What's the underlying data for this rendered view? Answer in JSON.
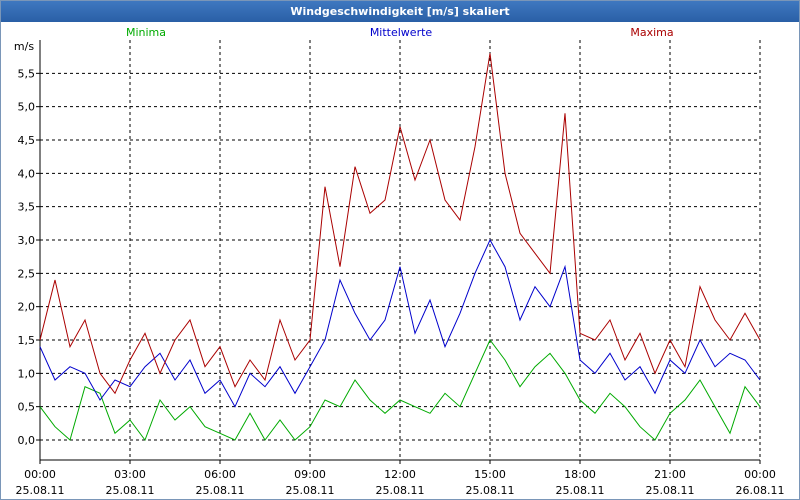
{
  "chart_data": {
    "type": "line",
    "title": "Windgeschwindigkeit [m/s] skaliert",
    "ylabel": "m/s",
    "ylim": [
      -0.3,
      6.0
    ],
    "yticks": [
      0.0,
      0.5,
      1.0,
      1.5,
      2.0,
      2.5,
      3.0,
      3.5,
      4.0,
      4.5,
      5.0,
      5.5
    ],
    "ytick_labels": [
      "0,0",
      "0,5",
      "1,0",
      "1,5",
      "2,0",
      "2,5",
      "3,0",
      "3,5",
      "4,0",
      "4,5",
      "5,0",
      "5,5"
    ],
    "xlim": [
      0,
      24
    ],
    "xticks": [
      {
        "time": "00:00",
        "date": "25.08.11"
      },
      {
        "time": "03:00",
        "date": "25.08.11"
      },
      {
        "time": "06:00",
        "date": "25.08.11"
      },
      {
        "time": "09:00",
        "date": "25.08.11"
      },
      {
        "time": "12:00",
        "date": "25.08.11"
      },
      {
        "time": "15:00",
        "date": "25.08.11"
      },
      {
        "time": "18:00",
        "date": "25.08.11"
      },
      {
        "time": "21:00",
        "date": "25.08.11"
      },
      {
        "time": "00:00",
        "date": "26.08.11"
      }
    ],
    "grid": true,
    "series": [
      {
        "name": "Minima",
        "color": "#00aa00",
        "x": [
          0,
          0.5,
          1,
          1.5,
          2,
          2.5,
          3,
          3.5,
          4,
          4.5,
          5,
          5.5,
          6,
          6.5,
          7,
          7.5,
          8,
          8.5,
          9,
          9.5,
          10,
          10.5,
          11,
          11.5,
          12,
          12.5,
          13,
          13.5,
          14,
          14.5,
          15,
          15.5,
          16,
          16.5,
          17,
          17.5,
          18,
          18.5,
          19,
          19.5,
          20,
          20.5,
          21,
          21.5,
          22,
          22.5,
          23,
          23.5,
          24
        ],
        "values": [
          0.5,
          0.2,
          0.0,
          0.8,
          0.7,
          0.1,
          0.3,
          0.0,
          0.6,
          0.3,
          0.5,
          0.2,
          0.1,
          0.0,
          0.4,
          0.0,
          0.3,
          0.0,
          0.2,
          0.6,
          0.5,
          0.9,
          0.6,
          0.4,
          0.6,
          0.5,
          0.4,
          0.7,
          0.5,
          1.0,
          1.5,
          1.2,
          0.8,
          1.1,
          1.3,
          1.0,
          0.6,
          0.4,
          0.7,
          0.5,
          0.2,
          0.0,
          0.4,
          0.6,
          0.9,
          0.5,
          0.1,
          0.8,
          0.5
        ]
      },
      {
        "name": "Mittelwerte",
        "color": "#0000cc",
        "x": [
          0,
          0.5,
          1,
          1.5,
          2,
          2.5,
          3,
          3.5,
          4,
          4.5,
          5,
          5.5,
          6,
          6.5,
          7,
          7.5,
          8,
          8.5,
          9,
          9.5,
          10,
          10.5,
          11,
          11.5,
          12,
          12.5,
          13,
          13.5,
          14,
          14.5,
          15,
          15.5,
          16,
          16.5,
          17,
          17.5,
          18,
          18.5,
          19,
          19.5,
          20,
          20.5,
          21,
          21.5,
          22,
          22.5,
          23,
          23.5,
          24
        ],
        "values": [
          1.4,
          0.9,
          1.1,
          1.0,
          0.6,
          0.9,
          0.8,
          1.1,
          1.3,
          0.9,
          1.2,
          0.7,
          0.9,
          0.5,
          1.0,
          0.8,
          1.1,
          0.7,
          1.1,
          1.5,
          2.4,
          1.9,
          1.5,
          1.8,
          2.6,
          1.6,
          2.1,
          1.4,
          1.9,
          2.5,
          3.0,
          2.6,
          1.8,
          2.3,
          2.0,
          2.6,
          1.2,
          1.0,
          1.3,
          0.9,
          1.1,
          0.7,
          1.2,
          1.0,
          1.5,
          1.1,
          1.3,
          1.2,
          0.9
        ]
      },
      {
        "name": "Maxima",
        "color": "#aa0000",
        "x": [
          0,
          0.5,
          1,
          1.5,
          2,
          2.5,
          3,
          3.5,
          4,
          4.5,
          5,
          5.5,
          6,
          6.5,
          7,
          7.5,
          8,
          8.5,
          9,
          9.5,
          10,
          10.5,
          11,
          11.5,
          12,
          12.5,
          13,
          13.5,
          14,
          14.5,
          15,
          15.5,
          16,
          16.5,
          17,
          17.5,
          18,
          18.5,
          19,
          19.5,
          20,
          20.5,
          21,
          21.5,
          22,
          22.5,
          23,
          23.5,
          24
        ],
        "values": [
          1.5,
          2.4,
          1.4,
          1.8,
          1.0,
          0.7,
          1.2,
          1.6,
          1.0,
          1.5,
          1.8,
          1.1,
          1.4,
          0.8,
          1.2,
          0.9,
          1.8,
          1.2,
          1.5,
          3.8,
          2.6,
          4.1,
          3.4,
          3.6,
          4.7,
          3.9,
          4.5,
          3.6,
          3.3,
          4.4,
          5.8,
          4.0,
          3.1,
          2.8,
          2.5,
          4.9,
          1.6,
          1.5,
          1.8,
          1.2,
          1.6,
          1.0,
          1.5,
          1.1,
          2.3,
          1.8,
          1.5,
          1.9,
          1.5
        ]
      }
    ]
  }
}
